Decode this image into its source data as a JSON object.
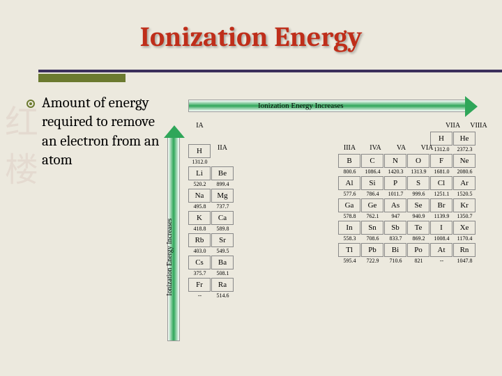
{
  "title": "Ionization Energy",
  "definition": "Amount of energy required to remove an electron from an atom",
  "arrow_label": "Ionization Energy Increases",
  "groups": {
    "IA": "IA",
    "IIA": "IIA",
    "IIIA": "IIIA",
    "IVA": "IVA",
    "VA": "VA",
    "VIA": "VIA",
    "VIIA": "VIIA",
    "VIIIA": "VIIIA"
  },
  "left_block": [
    [
      {
        "sym": "H",
        "ie": "1312.0"
      },
      null
    ],
    [
      {
        "sym": "Li",
        "ie": "520.2"
      },
      {
        "sym": "Be",
        "ie": "899.4"
      }
    ],
    [
      {
        "sym": "Na",
        "ie": "495.8"
      },
      {
        "sym": "Mg",
        "ie": "737.7"
      }
    ],
    [
      {
        "sym": "K",
        "ie": "418.8"
      },
      {
        "sym": "Ca",
        "ie": "589.8"
      }
    ],
    [
      {
        "sym": "Rb",
        "ie": "403.0"
      },
      {
        "sym": "Sr",
        "ie": "549.5"
      }
    ],
    [
      {
        "sym": "Cs",
        "ie": "375.7"
      },
      {
        "sym": "Ba",
        "ie": "508.1"
      }
    ],
    [
      {
        "sym": "Fr",
        "ie": "--"
      },
      {
        "sym": "Ra",
        "ie": "514.6"
      }
    ]
  ],
  "right_block": [
    [
      null,
      null,
      null,
      null,
      {
        "sym": "H",
        "ie": "1312.0"
      },
      {
        "sym": "He",
        "ie": "2372.3"
      }
    ],
    [
      {
        "sym": "B",
        "ie": "800.6"
      },
      {
        "sym": "C",
        "ie": "1086.4"
      },
      {
        "sym": "N",
        "ie": "1420.3"
      },
      {
        "sym": "O",
        "ie": "1313.9"
      },
      {
        "sym": "F",
        "ie": "1681.0"
      },
      {
        "sym": "Ne",
        "ie": "2080.6"
      }
    ],
    [
      {
        "sym": "Al",
        "ie": "577.6"
      },
      {
        "sym": "Si",
        "ie": "786.4"
      },
      {
        "sym": "P",
        "ie": "1011.7"
      },
      {
        "sym": "S",
        "ie": "999.6"
      },
      {
        "sym": "Cl",
        "ie": "1251.1"
      },
      {
        "sym": "Ar",
        "ie": "1520.5"
      }
    ],
    [
      {
        "sym": "Ga",
        "ie": "578.8"
      },
      {
        "sym": "Ge",
        "ie": "762.1"
      },
      {
        "sym": "As",
        "ie": "947"
      },
      {
        "sym": "Se",
        "ie": "940.9"
      },
      {
        "sym": "Br",
        "ie": "1139.9"
      },
      {
        "sym": "Kr",
        "ie": "1350.7"
      }
    ],
    [
      {
        "sym": "In",
        "ie": "558.3"
      },
      {
        "sym": "Sn",
        "ie": "708.6"
      },
      {
        "sym": "Sb",
        "ie": "833.7"
      },
      {
        "sym": "Te",
        "ie": "869.2"
      },
      {
        "sym": "I",
        "ie": "1008.4"
      },
      {
        "sym": "Xe",
        "ie": "1170.4"
      }
    ],
    [
      {
        "sym": "Tl",
        "ie": "595.4"
      },
      {
        "sym": "Pb",
        "ie": "722.9"
      },
      {
        "sym": "Bi",
        "ie": "710.6"
      },
      {
        "sym": "Po",
        "ie": "821"
      },
      {
        "sym": "At",
        "ie": "--"
      },
      {
        "sym": "Rn",
        "ie": "1047.8"
      }
    ]
  ],
  "colors": {
    "title": "#bf2e1a",
    "accent": "#6b7a2f",
    "arrow": "#2fa659",
    "background": "#ece9de",
    "cell_border": "#888888"
  }
}
